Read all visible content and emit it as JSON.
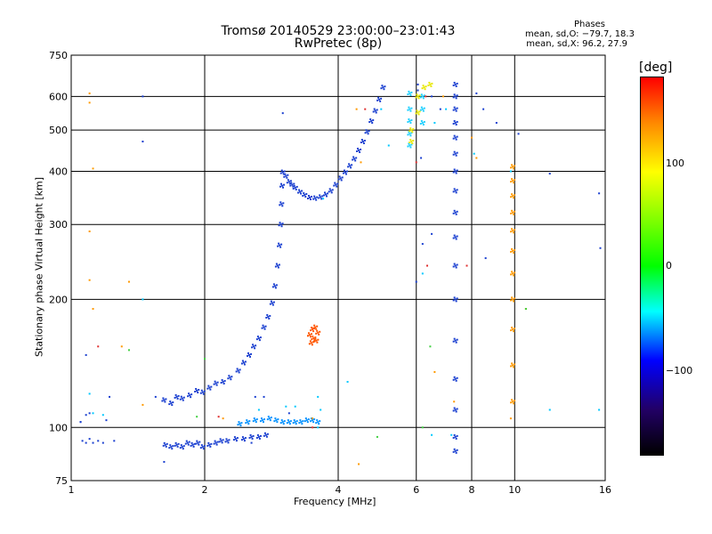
{
  "chart_data": {
    "type": "scatter",
    "title": "Tromsø 20140529 23:00:00–23:01:43",
    "subtitle": "RwPretec (8p)",
    "xlabel": "Frequency [MHz]",
    "ylabel": "Stationary phase Virtual Height [km]",
    "xscale": "log",
    "yscale": "log",
    "xlim": [
      1,
      16
    ],
    "ylim": [
      75,
      750
    ],
    "xticks": [
      1,
      2,
      4,
      6,
      8,
      10,
      16
    ],
    "yticks": [
      75,
      100,
      200,
      300,
      400,
      500,
      600,
      750
    ],
    "grid": true,
    "phases": {
      "heading": "Phases",
      "line_o": "mean, sd,O:  −79.7, 18.3",
      "line_x": "mean, sd,X:  96.2, 27.9"
    },
    "colorbar": {
      "label": "[deg]",
      "ticks": [
        "100",
        "0",
        "−100"
      ],
      "tick_values": [
        100,
        0,
        -100
      ],
      "range": [
        -180,
        180
      ]
    },
    "traces": [
      {
        "name": "",
        "color": "#1a3fd0",
        "points": [
          [
            1.63,
            91
          ],
          [
            1.68,
            90
          ],
          [
            1.73,
            91
          ],
          [
            1.78,
            90
          ],
          [
            1.83,
            92
          ],
          [
            1.88,
            91
          ],
          [
            1.93,
            92
          ],
          [
            1.98,
            90
          ],
          [
            2.05,
            91
          ],
          [
            2.12,
            92
          ],
          [
            2.18,
            93
          ],
          [
            2.25,
            93
          ],
          [
            2.35,
            94
          ],
          [
            2.45,
            94
          ],
          [
            2.55,
            95
          ],
          [
            2.65,
            95
          ],
          [
            2.75,
            96
          ]
        ]
      },
      {
        "name": "",
        "color": "#1a3fd0",
        "points": [
          [
            1.62,
            116
          ],
          [
            1.68,
            114
          ],
          [
            1.73,
            118
          ],
          [
            1.78,
            117
          ],
          [
            1.85,
            119
          ],
          [
            1.92,
            122
          ],
          [
            1.98,
            121
          ],
          [
            2.05,
            124
          ],
          [
            2.12,
            127
          ],
          [
            2.2,
            128
          ],
          [
            2.28,
            131
          ],
          [
            2.38,
            136
          ],
          [
            2.45,
            142
          ],
          [
            2.52,
            148
          ],
          [
            2.58,
            155
          ],
          [
            2.65,
            162
          ],
          [
            2.72,
            172
          ],
          [
            2.78,
            182
          ],
          [
            2.84,
            196
          ],
          [
            2.88,
            215
          ],
          [
            2.92,
            240
          ],
          [
            2.95,
            268
          ],
          [
            2.97,
            300
          ],
          [
            2.98,
            335
          ],
          [
            2.99,
            370
          ],
          [
            3.0,
            398
          ]
        ]
      },
      {
        "name": "",
        "color": "#1a3fd0",
        "points": [
          [
            3.05,
            390
          ],
          [
            3.1,
            378
          ],
          [
            3.15,
            372
          ],
          [
            3.2,
            366
          ],
          [
            3.28,
            358
          ],
          [
            3.36,
            352
          ],
          [
            3.45,
            347
          ],
          [
            3.55,
            346
          ],
          [
            3.65,
            348
          ],
          [
            3.75,
            353
          ],
          [
            3.85,
            360
          ],
          [
            3.95,
            372
          ],
          [
            4.05,
            385
          ],
          [
            4.15,
            398
          ],
          [
            4.25,
            412
          ],
          [
            4.35,
            428
          ],
          [
            4.45,
            448
          ],
          [
            4.55,
            470
          ],
          [
            4.65,
            495
          ],
          [
            4.75,
            525
          ],
          [
            4.85,
            555
          ],
          [
            4.95,
            590
          ],
          [
            5.05,
            630
          ]
        ]
      },
      {
        "name": "",
        "color": "#0090ff",
        "points": [
          [
            2.4,
            102
          ],
          [
            2.5,
            103
          ],
          [
            2.6,
            104
          ],
          [
            2.7,
            104
          ],
          [
            2.8,
            105
          ],
          [
            2.9,
            104
          ],
          [
            3.0,
            103
          ],
          [
            3.1,
            103
          ],
          [
            3.2,
            103
          ],
          [
            3.3,
            103
          ],
          [
            3.4,
            104
          ],
          [
            3.5,
            104
          ],
          [
            3.6,
            103
          ]
        ]
      },
      {
        "name": "",
        "color": "#20d0ff",
        "points": [
          [
            5.8,
            460
          ],
          [
            5.8,
            490
          ],
          [
            5.8,
            525
          ],
          [
            5.8,
            560
          ],
          [
            5.8,
            610
          ],
          [
            6.2,
            600
          ],
          [
            6.2,
            560
          ],
          [
            6.2,
            520
          ]
        ]
      },
      {
        "name": "",
        "color": "#e8e800",
        "points": [
          [
            5.85,
            470
          ],
          [
            5.85,
            500
          ],
          [
            6.05,
            550
          ],
          [
            6.05,
            600
          ],
          [
            6.25,
            630
          ],
          [
            6.45,
            640
          ]
        ]
      },
      {
        "name": "",
        "color": "#ff5500",
        "points": [
          [
            3.45,
            165
          ],
          [
            3.48,
            158
          ],
          [
            3.5,
            170
          ],
          [
            3.52,
            162
          ],
          [
            3.55,
            172
          ],
          [
            3.57,
            160
          ],
          [
            3.6,
            167
          ]
        ]
      },
      {
        "name": "",
        "color": "#1a3fd0",
        "points": [
          [
            7.35,
            640
          ],
          [
            7.35,
            600
          ],
          [
            7.35,
            560
          ],
          [
            7.35,
            520
          ],
          [
            7.35,
            480
          ],
          [
            7.35,
            440
          ],
          [
            7.35,
            400
          ],
          [
            7.35,
            360
          ],
          [
            7.35,
            320
          ],
          [
            7.35,
            280
          ],
          [
            7.35,
            240
          ],
          [
            7.35,
            200
          ],
          [
            7.35,
            160
          ],
          [
            7.35,
            130
          ],
          [
            7.35,
            110
          ],
          [
            7.35,
            95
          ],
          [
            7.35,
            88
          ]
        ]
      },
      {
        "name": "",
        "color": "#ff9900",
        "points": [
          [
            9.9,
            410
          ],
          [
            9.9,
            380
          ],
          [
            9.9,
            350
          ],
          [
            9.9,
            320
          ],
          [
            9.9,
            290
          ],
          [
            9.9,
            260
          ],
          [
            9.9,
            230
          ],
          [
            9.9,
            200
          ],
          [
            9.9,
            170
          ],
          [
            9.9,
            140
          ],
          [
            9.9,
            115
          ]
        ]
      }
    ],
    "scatter": [
      {
        "color": "#1a3fd0",
        "points": [
          [
            1.06,
            93
          ],
          [
            1.08,
            92
          ],
          [
            1.1,
            94
          ],
          [
            1.12,
            92
          ],
          [
            1.15,
            93
          ],
          [
            1.18,
            92
          ],
          [
            1.25,
            93
          ],
          [
            1.45,
            470
          ],
          [
            1.45,
            600
          ],
          [
            1.62,
            83
          ],
          [
            2.55,
            92
          ],
          [
            2.6,
            118
          ],
          [
            2.72,
            118
          ],
          [
            3.0,
            548
          ],
          [
            3.1,
            108
          ],
          [
            1.05,
            103
          ],
          [
            1.08,
            107
          ],
          [
            1.1,
            108
          ],
          [
            1.2,
            104
          ],
          [
            1.22,
            118
          ],
          [
            1.08,
            148
          ],
          [
            1.55,
            118
          ],
          [
            6.05,
            620
          ],
          [
            6.05,
            640
          ],
          [
            6.15,
            430
          ],
          [
            6.5,
            600
          ],
          [
            6.8,
            560
          ],
          [
            8.2,
            610
          ],
          [
            8.5,
            560
          ],
          [
            9.1,
            520
          ],
          [
            10.2,
            490
          ],
          [
            12.0,
            395
          ],
          [
            15.5,
            355
          ],
          [
            15.6,
            264
          ],
          [
            8.6,
            250
          ],
          [
            6.0,
            220
          ],
          [
            6.2,
            270
          ],
          [
            6.5,
            285
          ],
          [
            1.05,
            103
          ]
        ]
      },
      {
        "color": "#00c8ff",
        "points": [
          [
            1.12,
            108
          ],
          [
            1.1,
            120
          ],
          [
            1.18,
            107
          ],
          [
            2.65,
            110
          ],
          [
            3.05,
            112
          ],
          [
            3.2,
            112
          ],
          [
            3.6,
            100
          ],
          [
            3.65,
            110
          ],
          [
            3.6,
            118
          ],
          [
            4.2,
            128
          ],
          [
            3.7,
            345
          ],
          [
            5.0,
            560
          ],
          [
            5.2,
            460
          ],
          [
            7.0,
            560
          ],
          [
            6.6,
            520
          ],
          [
            8.1,
            440
          ],
          [
            9.8,
            400
          ],
          [
            12.0,
            110
          ],
          [
            15.5,
            110
          ],
          [
            6.5,
            96
          ],
          [
            7.2,
            96
          ],
          [
            1.45,
            200
          ],
          [
            6.2,
            230
          ]
        ]
      },
      {
        "color": "#ff9900",
        "points": [
          [
            1.1,
            610
          ],
          [
            1.1,
            580
          ],
          [
            1.12,
            406
          ],
          [
            1.1,
            289
          ],
          [
            1.1,
            222
          ],
          [
            1.12,
            190
          ],
          [
            1.3,
            155
          ],
          [
            1.35,
            220
          ],
          [
            1.45,
            113
          ],
          [
            2.2,
            105
          ],
          [
            3.5,
            105
          ],
          [
            4.4,
            560
          ],
          [
            4.5,
            420
          ],
          [
            6.6,
            135
          ],
          [
            7.3,
            115
          ],
          [
            4.45,
            82
          ],
          [
            9.8,
            105
          ],
          [
            10.6,
            190
          ],
          [
            8.2,
            430
          ],
          [
            8.0,
            480
          ],
          [
            6.9,
            600
          ]
        ]
      },
      {
        "color": "#e03030",
        "points": [
          [
            2.15,
            106
          ],
          [
            3.5,
            100
          ],
          [
            4.6,
            560
          ],
          [
            6.3,
            600
          ],
          [
            1.15,
            155
          ],
          [
            6.35,
            240
          ],
          [
            7.8,
            240
          ],
          [
            6.0,
            420
          ]
        ]
      },
      {
        "color": "#40d040",
        "points": [
          [
            1.35,
            152
          ],
          [
            2.0,
            145
          ],
          [
            4.9,
            95
          ],
          [
            6.45,
            155
          ],
          [
            10.6,
            190
          ],
          [
            1.92,
            106
          ],
          [
            6.2,
            100
          ]
        ]
      }
    ]
  }
}
